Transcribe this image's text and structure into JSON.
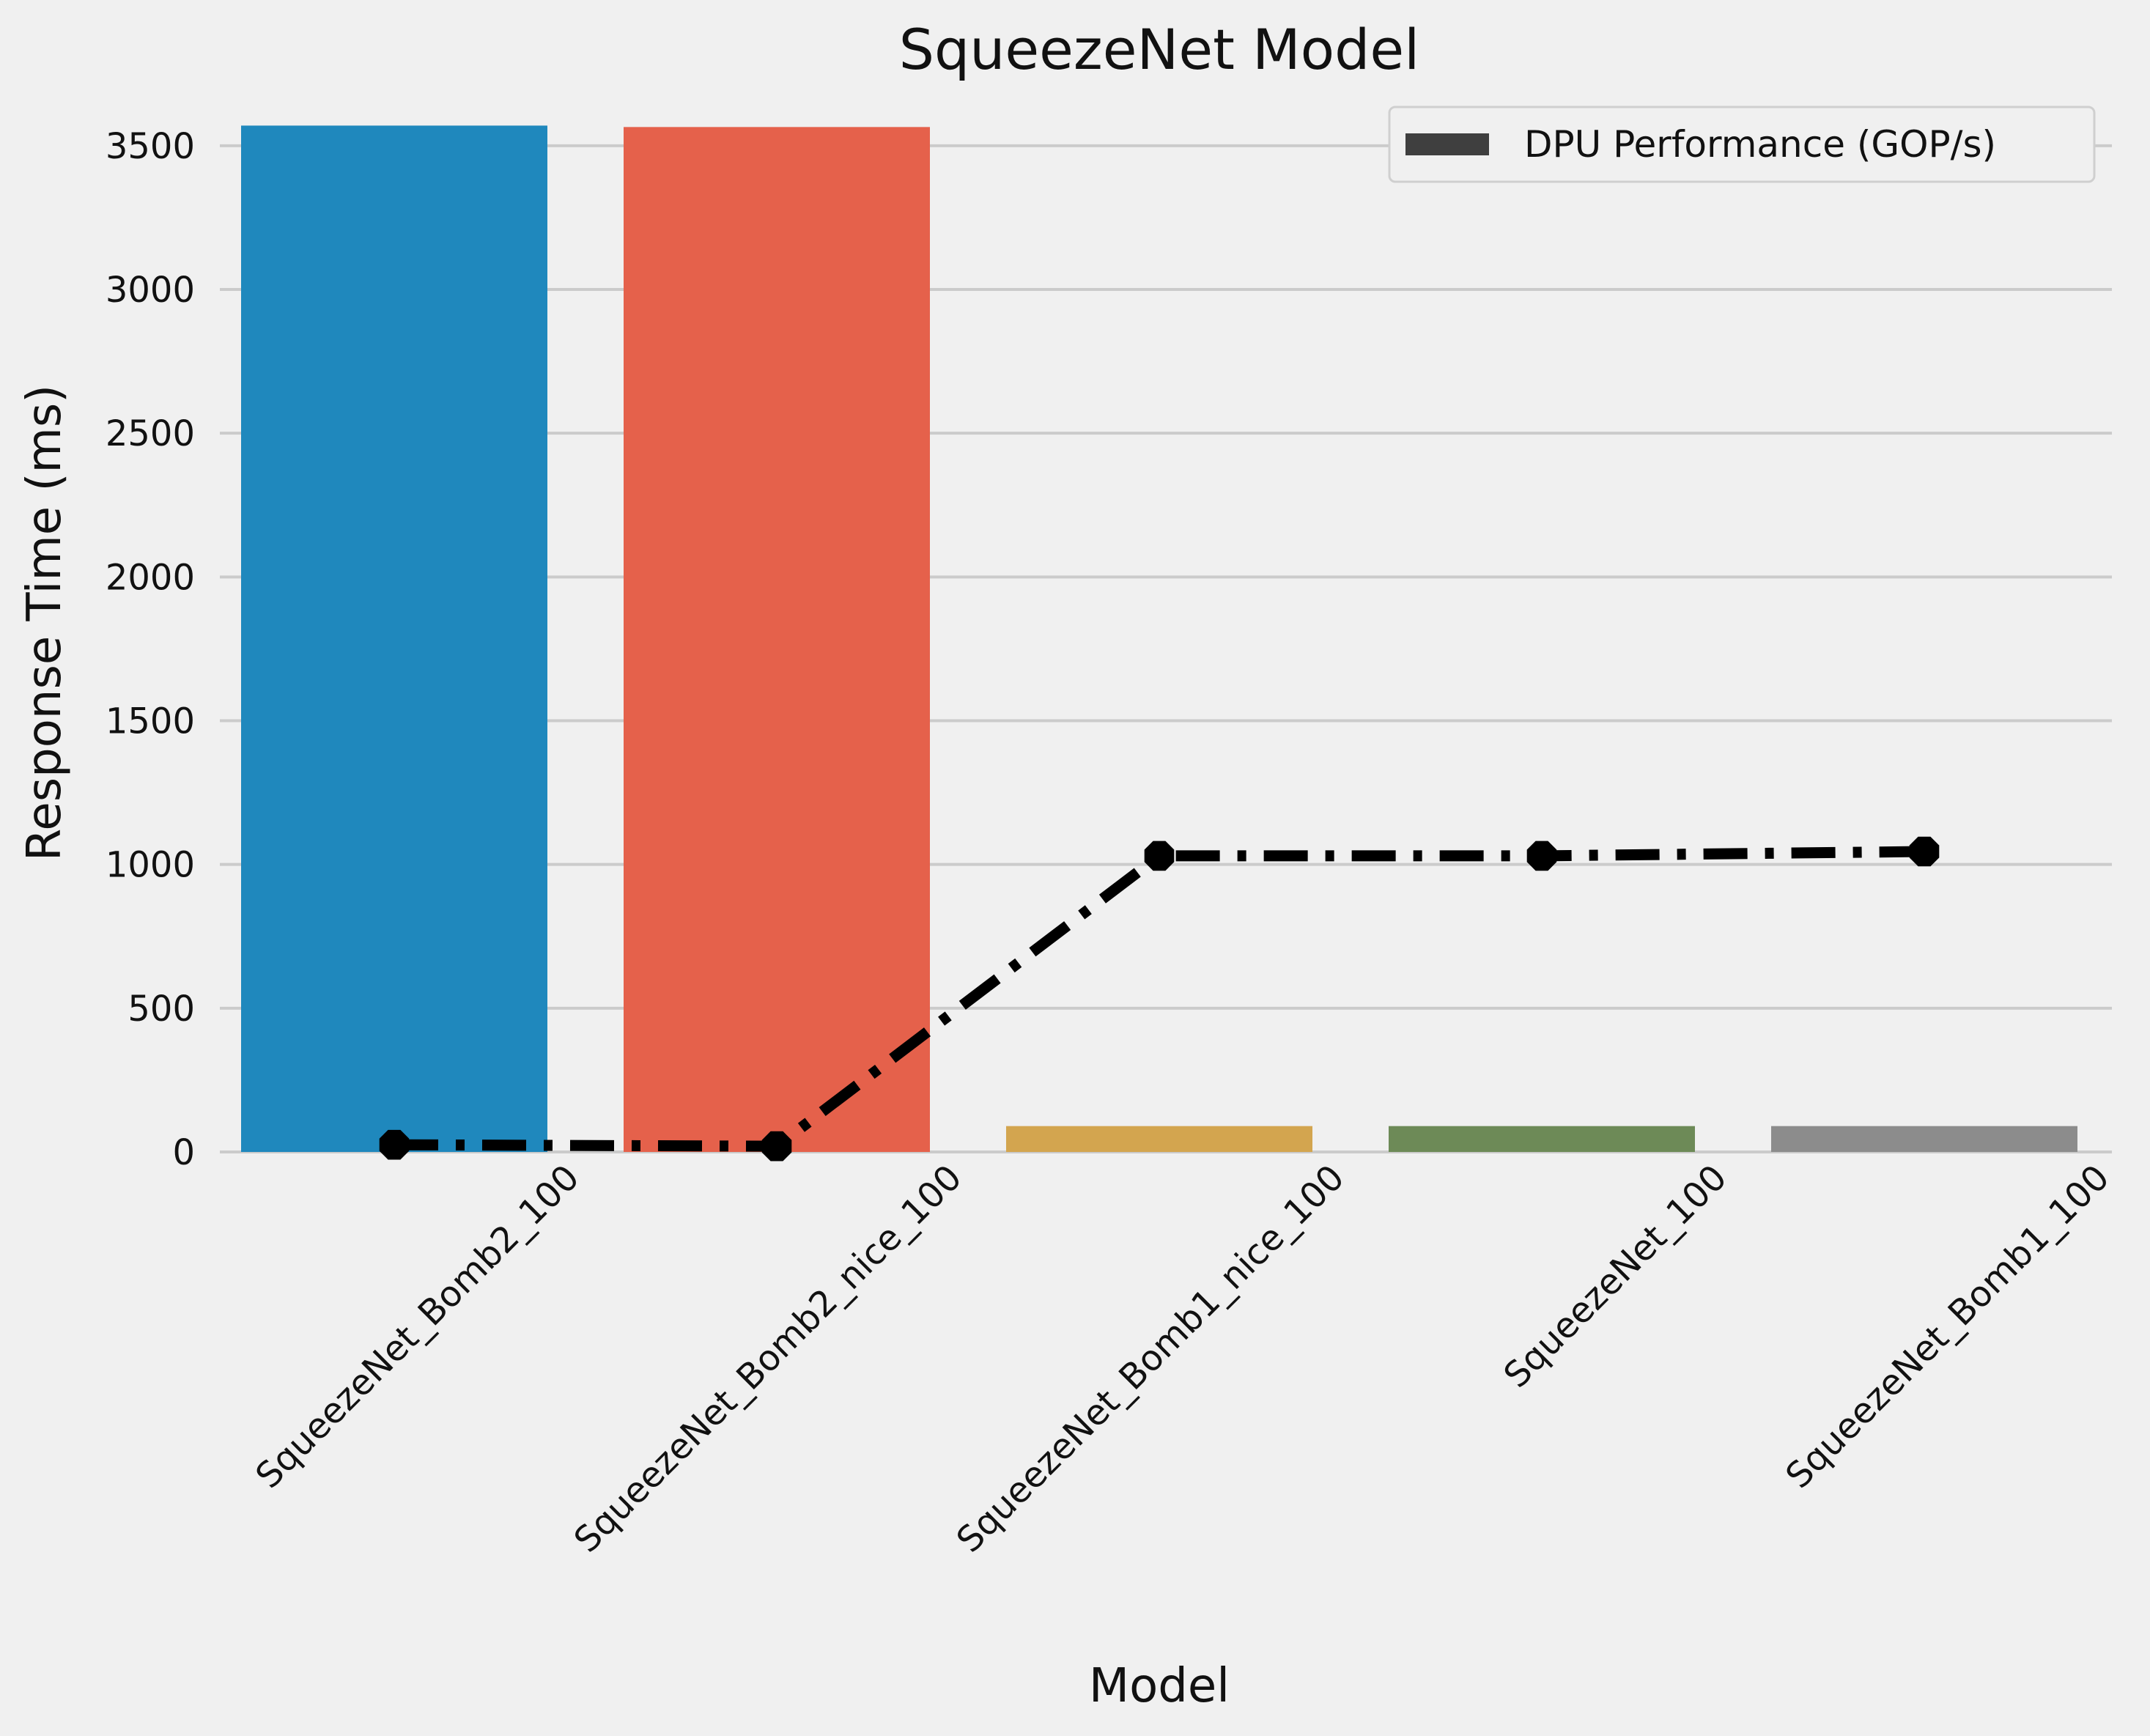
{
  "chart_data": {
    "type": "bar",
    "title": "SqueezeNet Model",
    "xlabel": "Model",
    "ylabel": "Response Time (ms)",
    "categories": [
      "SqueezeNet_Bomb2_100",
      "SqueezeNet_Bomb2_nice_100",
      "SqueezeNet_Bomb1_nice_100",
      "SqueezeNet_100",
      "SqueezeNet_Bomb1_100"
    ],
    "bar_values": [
      3570,
      3565,
      90,
      90,
      90
    ],
    "bar_colors": [
      "#1f88bd",
      "#e5614b",
      "#d3a54f",
      "#6d8a57",
      "#8c8c8c"
    ],
    "line_series": {
      "name": "DPU Performance (GOP/s)",
      "values": [
        25,
        20,
        1030,
        1030,
        1045
      ],
      "color": "#000000",
      "style": "dash-dot",
      "marker": "octagon"
    },
    "ylim": [
      0,
      3650
    ],
    "yticks": [
      0,
      500,
      1000,
      1500,
      2000,
      2500,
      3000,
      3500
    ],
    "grid": "horizontal",
    "legend": {
      "placement": "top-right",
      "entries": [
        "DPU Performance (GOP/s)"
      ],
      "swatch_color": "#3f3f3f"
    },
    "background": "#f0f0f0",
    "grid_color": "#cbcbcb"
  }
}
